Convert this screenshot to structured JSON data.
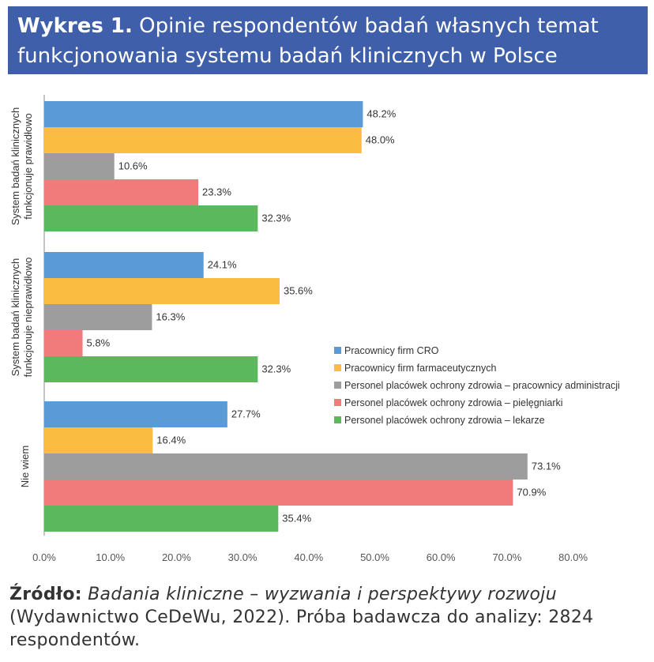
{
  "header": {
    "label": "Wykres 1.",
    "title": "Opinie respondentów badań własnych temat funkcjonowania systemu badań klinicznych w Polsce"
  },
  "colors": {
    "header_bg": "#3f5faa",
    "series": [
      "#5b9bd5",
      "#fbbc42",
      "#9d9d9d",
      "#f07b7b",
      "#5cb85c"
    ]
  },
  "chart_data": {
    "type": "bar",
    "orientation": "horizontal",
    "categories": [
      "System badań klinicznych funkcjonuje prawidłowo",
      "System badań klinicznych funkcjonuje nieprawidłowo",
      "Nie wiem"
    ],
    "category_lines": [
      [
        "System badań klinicznych",
        "funkcjonuje prawidłowo"
      ],
      [
        "System badań klinicznych",
        "funkcjonuje nieprawidłowo"
      ],
      [
        "Nie wiem"
      ]
    ],
    "series": [
      {
        "name": "Pracownicy firm CRO",
        "values": [
          48.2,
          24.1,
          27.7
        ]
      },
      {
        "name": "Pracownicy firm farmaceutycznych",
        "values": [
          48.0,
          35.6,
          16.4
        ]
      },
      {
        "name": "Personel placówek ochrony zdrowia – pracownicy administracji",
        "values": [
          10.6,
          16.3,
          73.1
        ]
      },
      {
        "name": "Personel placówek ochrony zdrowia – pielęgniarki",
        "values": [
          23.3,
          5.8,
          70.9
        ]
      },
      {
        "name": "Personel placówek ochrony zdrowia – lekarze",
        "values": [
          32.3,
          32.3,
          35.4
        ]
      }
    ],
    "value_labels": [
      [
        "48.2%",
        "24.1%",
        "27.7%"
      ],
      [
        "48.0%",
        "35.6%",
        "16.4%"
      ],
      [
        "10.6%",
        "16.3%",
        "73.1%"
      ],
      [
        "23.3%",
        "5.8%",
        "70.9%"
      ],
      [
        "32.3%",
        "32.3%",
        "35.4%"
      ]
    ],
    "xlim": [
      0,
      80
    ],
    "x_ticks": [
      "0.0%",
      "10.0%",
      "20.0%",
      "30.0%",
      "40.0%",
      "50.0%",
      "60.0%",
      "70.0%",
      "80.0%"
    ],
    "grid": false,
    "legend_position": "right"
  },
  "source": {
    "label": "Źródło:",
    "title": "Badania kliniczne – wyzwania i perspektywy rozwoju",
    "rest": "(Wydawnictwo CeDeWu, 2022). Próba badawcza do analizy: 2824 respondentów."
  }
}
